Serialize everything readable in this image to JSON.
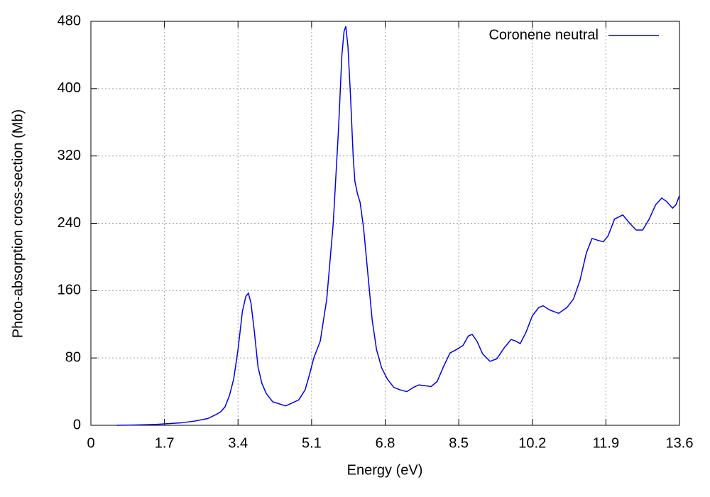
{
  "chart_data": {
    "type": "line",
    "xlabel": "Energy (eV)",
    "ylabel": "Photo-absorption cross-section (Mb)",
    "x": [
      0.6,
      1.0,
      1.5,
      1.8,
      2.1,
      2.4,
      2.7,
      2.9,
      3.0,
      3.1,
      3.2,
      3.3,
      3.4,
      3.5,
      3.58,
      3.64,
      3.7,
      3.78,
      3.86,
      3.95,
      4.05,
      4.2,
      4.5,
      4.8,
      4.95,
      5.05,
      5.15,
      5.3,
      5.45,
      5.6,
      5.72,
      5.8,
      5.85,
      5.89,
      5.94,
      6.0,
      6.06,
      6.1,
      6.16,
      6.22,
      6.3,
      6.4,
      6.5,
      6.6,
      6.72,
      6.85,
      7.0,
      7.15,
      7.3,
      7.45,
      7.58,
      7.72,
      7.86,
      8.0,
      8.15,
      8.3,
      8.45,
      8.6,
      8.72,
      8.81,
      8.92,
      9.05,
      9.22,
      9.38,
      9.55,
      9.71,
      9.82,
      9.92,
      10.05,
      10.2,
      10.35,
      10.45,
      10.6,
      10.81,
      11.0,
      11.15,
      11.3,
      11.45,
      11.58,
      11.7,
      11.84,
      11.95,
      12.1,
      12.29,
      12.45,
      12.6,
      12.75,
      12.9,
      13.05,
      13.19,
      13.3,
      13.44,
      13.52,
      13.6
    ],
    "series": [
      {
        "name": "Coronene neutral",
        "color": "#0000ee",
        "values": [
          0,
          0.3,
          1,
          2,
          3,
          5,
          8,
          13,
          16,
          22,
          35,
          55,
          90,
          135,
          153,
          157,
          145,
          110,
          70,
          50,
          38,
          28,
          23,
          30,
          42,
          60,
          80,
          100,
          150,
          240,
          350,
          440,
          468,
          474,
          450,
          390,
          320,
          290,
          275,
          265,
          235,
          180,
          125,
          90,
          68,
          55,
          45,
          42,
          40,
          45,
          48,
          47,
          46,
          52,
          70,
          86,
          90,
          95,
          106,
          108,
          100,
          85,
          76,
          79,
          92,
          102,
          100,
          97,
          110,
          130,
          140,
          142,
          137,
          133,
          140,
          150,
          172,
          205,
          222,
          220,
          218,
          225,
          245,
          250,
          240,
          232,
          232,
          245,
          262,
          270,
          266,
          258,
          262,
          273
        ]
      }
    ],
    "xlim": [
      0,
      13.6
    ],
    "xticks": [
      0,
      1.7,
      3.4,
      5.1,
      6.8,
      8.5,
      10.2,
      11.9,
      13.6
    ],
    "ylim": [
      0,
      480
    ],
    "yticks": [
      0,
      80,
      160,
      240,
      320,
      400,
      480
    ],
    "grid": true,
    "legend": "top-right"
  }
}
